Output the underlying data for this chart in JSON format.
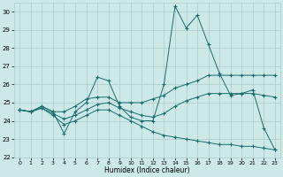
{
  "xlabel": "Humidex (Indice chaleur)",
  "background_color": "#cce9e8",
  "grid_color": "#aacccc",
  "line_color": "#1a6b6b",
  "xlim": [
    -0.5,
    23.5
  ],
  "ylim": [
    22,
    30.5
  ],
  "xticks": [
    0,
    1,
    2,
    3,
    4,
    5,
    6,
    7,
    8,
    9,
    10,
    11,
    12,
    13,
    14,
    15,
    16,
    17,
    18,
    19,
    20,
    21,
    22,
    23
  ],
  "yticks": [
    22,
    23,
    24,
    25,
    26,
    27,
    28,
    29,
    30
  ],
  "series": [
    [
      24.6,
      24.5,
      24.8,
      24.5,
      23.3,
      24.5,
      25.0,
      26.4,
      26.2,
      24.8,
      24.2,
      24.0,
      24.0,
      26.0,
      30.3,
      29.1,
      29.8,
      28.2,
      26.6,
      25.4,
      25.5,
      25.7,
      23.6,
      22.4
    ],
    [
      24.6,
      24.5,
      24.8,
      24.5,
      24.5,
      24.8,
      25.2,
      25.3,
      25.3,
      25.0,
      25.0,
      25.0,
      25.2,
      25.4,
      25.8,
      26.0,
      26.2,
      26.5,
      26.5,
      26.5,
      26.5,
      26.5,
      26.5,
      26.5
    ],
    [
      24.6,
      24.5,
      24.7,
      24.4,
      24.1,
      24.3,
      24.6,
      24.9,
      25.0,
      24.7,
      24.5,
      24.3,
      24.2,
      24.4,
      24.8,
      25.1,
      25.3,
      25.5,
      25.5,
      25.5,
      25.5,
      25.5,
      25.4,
      25.3
    ],
    [
      24.6,
      24.5,
      24.7,
      24.3,
      23.8,
      24.0,
      24.3,
      24.6,
      24.6,
      24.3,
      24.0,
      23.7,
      23.4,
      23.2,
      23.1,
      23.0,
      22.9,
      22.8,
      22.7,
      22.7,
      22.6,
      22.6,
      22.5,
      22.4
    ]
  ]
}
